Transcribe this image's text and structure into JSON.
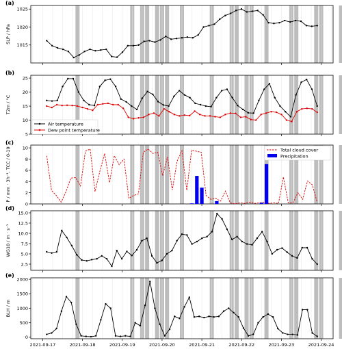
{
  "chart_data": [
    {
      "panel": "(a)",
      "type": "line",
      "ylabel": "SLP / hPa",
      "ylim": [
        1010,
        1026
      ],
      "yticks": [
        1015,
        1020,
        1025
      ],
      "series": [
        {
          "values": [
            1016.2,
            1014.8,
            1014.2,
            1013.8,
            1013.2,
            1011.5,
            1012.2,
            1013.2,
            1013.8,
            1013.4,
            1013.6,
            1013.8,
            1011.8,
            1011.6,
            1013.0,
            1014.8,
            1014.8,
            1015.0,
            1016.0,
            1016.2,
            1015.8,
            1016.4,
            1017.4,
            1016.6,
            1016.8,
            1017.0,
            1017.2,
            1017.0,
            1017.8,
            1020.0,
            1020.4,
            1020.8,
            1022.2,
            1023.2,
            1023.8,
            1024.6,
            1025.0,
            1024.2,
            1024.4,
            1024.6,
            1023.4,
            1021.2,
            1021.0,
            1021.2,
            1021.8,
            1021.4,
            1021.8,
            1021.6,
            1020.4,
            1020.2,
            1020.4
          ]
        }
      ]
    },
    {
      "panel": "(b)",
      "type": "line",
      "ylabel": "T2m / °C",
      "ylim": [
        5,
        26
      ],
      "yticks": [
        5,
        10,
        15,
        20,
        25
      ],
      "legend": "lower-left",
      "series": [
        {
          "name": "Air temperature",
          "color": "#000000",
          "values": [
            17.0,
            16.8,
            17.0,
            22.0,
            24.8,
            24.8,
            20.0,
            17.0,
            15.5,
            15.2,
            22.0,
            24.2,
            24.6,
            22.0,
            17.5,
            16.5,
            15.0,
            13.8,
            17.8,
            20.2,
            19.2,
            16.6,
            15.4,
            15.0,
            18.5,
            20.5,
            19.0,
            18.0,
            16.0,
            15.5,
            15.0,
            14.8,
            18.0,
            20.5,
            21.0,
            18.0,
            15.2,
            13.8,
            12.6,
            12.5,
            17.0,
            21.0,
            23.0,
            18.0,
            15.0,
            13.0,
            11.2,
            19.0,
            23.5,
            24.5,
            21.0,
            15.0
          ]
        },
        {
          "name": "Dew point temperature",
          "color": "#dd0000",
          "values": [
            15.0,
            14.5,
            15.5,
            15.2,
            15.3,
            15.2,
            15.0,
            14.5,
            14.0,
            13.5,
            15.5,
            15.8,
            16.0,
            15.5,
            15.5,
            14.2,
            11.0,
            10.5,
            10.8,
            11.0,
            12.0,
            12.5,
            11.5,
            14.0,
            13.0,
            12.0,
            11.5,
            11.8,
            11.6,
            13.2,
            12.0,
            11.5,
            11.5,
            11.2,
            11.0,
            12.0,
            12.5,
            12.4,
            11.0,
            11.2,
            10.2,
            10.0,
            12.0,
            12.5,
            13.0,
            12.8,
            12.0,
            10.0,
            9.5,
            13.0,
            14.0,
            14.2,
            14.0,
            12.8
          ]
        }
      ]
    },
    {
      "panel": "(c)",
      "type": "bar+line",
      "ylabel": "P / mm · 3h⁻¹, TCC / 0-10",
      "ylim": [
        0,
        10.5
      ],
      "yticks": [
        0,
        2,
        4,
        6,
        8,
        10
      ],
      "legend": "top-right",
      "series": [
        {
          "name": "Total cloud cover",
          "color": "#dd0000",
          "style": "dashed",
          "values": [
            8.6,
            2.4,
            1.5,
            0.3,
            2.2,
            4.6,
            4.7,
            3.2,
            9.4,
            9.8,
            2.2,
            5.8,
            9.0,
            3.8,
            8.6,
            7.0,
            8.0,
            1.0,
            1.5,
            1.8,
            9.2,
            9.8,
            9.0,
            9.2,
            5.0,
            8.4,
            2.5,
            7.6,
            9.5,
            2.4,
            9.6,
            9.4,
            9.2,
            1.5,
            0.8,
            1.0,
            0.5,
            2.3,
            0.2,
            0.0,
            0.2,
            0.1,
            0.3,
            0.1,
            0.2,
            0.3,
            0.1,
            0.2,
            0.1,
            4.8,
            0.2,
            0.2,
            2.0,
            0.8,
            4.1,
            3.4,
            0.3
          ]
        },
        {
          "name": "Precipitation",
          "color": "#0000ee",
          "type": "bar",
          "points": [
            [
              3.75,
              0.1
            ],
            [
              3.875,
              5.0
            ],
            [
              4.0,
              2.9
            ],
            [
              4.375,
              0.5
            ],
            [
              5.5,
              0.2
            ],
            [
              5.625,
              7.1
            ]
          ]
        }
      ]
    },
    {
      "panel": "(d)",
      "type": "line",
      "ylabel": "WG10 / m · s⁻¹",
      "ylim": [
        1.0,
        15.5
      ],
      "yticks": [
        "2.5",
        "5.0",
        "7.5",
        "10.0",
        "12.5",
        "15.0"
      ],
      "series": [
        {
          "values": [
            5.5,
            5.2,
            5.5,
            10.7,
            9.0,
            7.0,
            4.8,
            3.5,
            3.3,
            3.6,
            3.8,
            4.5,
            3.8,
            2.0,
            5.8,
            3.8,
            5.6,
            4.6,
            6.0,
            8.2,
            8.8,
            4.5,
            2.8,
            3.4,
            5.0,
            5.8,
            8.2,
            9.8,
            9.6,
            7.4,
            8.0,
            8.8,
            9.2,
            10.4,
            14.8,
            13.5,
            11.0,
            8.5,
            9.2,
            8.0,
            7.4,
            7.2,
            8.8,
            10.4,
            8.0,
            5.0,
            6.0,
            6.4,
            5.4,
            4.5,
            4.0,
            6.5,
            6.5,
            3.8,
            2.5
          ]
        }
      ]
    },
    {
      "panel": "(e)",
      "type": "line",
      "ylabel": "BLH / m",
      "ylim": [
        -50,
        2050
      ],
      "yticks": [
        0,
        500,
        1000,
        1500,
        2000
      ],
      "xticks": [
        "2021-09-17",
        "2021-09-18",
        "2021-09-19",
        "2021-09-20",
        "2021-09-21",
        "2021-09-22",
        "2021-09-23",
        "2021-09-24"
      ],
      "series": [
        {
          "values": [
            100,
            150,
            300,
            900,
            1400,
            1200,
            450,
            50,
            30,
            20,
            50,
            600,
            1150,
            1000,
            50,
            30,
            50,
            30,
            500,
            400,
            1100,
            1920,
            1000,
            450,
            50,
            280,
            720,
            650,
            1050,
            1380,
            700,
            720,
            680,
            720,
            700,
            720,
            900,
            1000,
            850,
            700,
            320,
            50,
            100,
            500,
            700,
            800,
            700,
            300,
            150,
            100,
            100,
            80,
            950,
            950,
            150,
            30
          ]
        }
      ]
    }
  ],
  "shaded_days": [
    0.875,
    2.25,
    2.5,
    2.625,
    2.875,
    3.0,
    3.125,
    3.5,
    4.25,
    4.75,
    4.875,
    5.125,
    5.25,
    5.625,
    6.25,
    6.375,
    6.875,
    7.0,
    7.5,
    8.0
  ]
}
